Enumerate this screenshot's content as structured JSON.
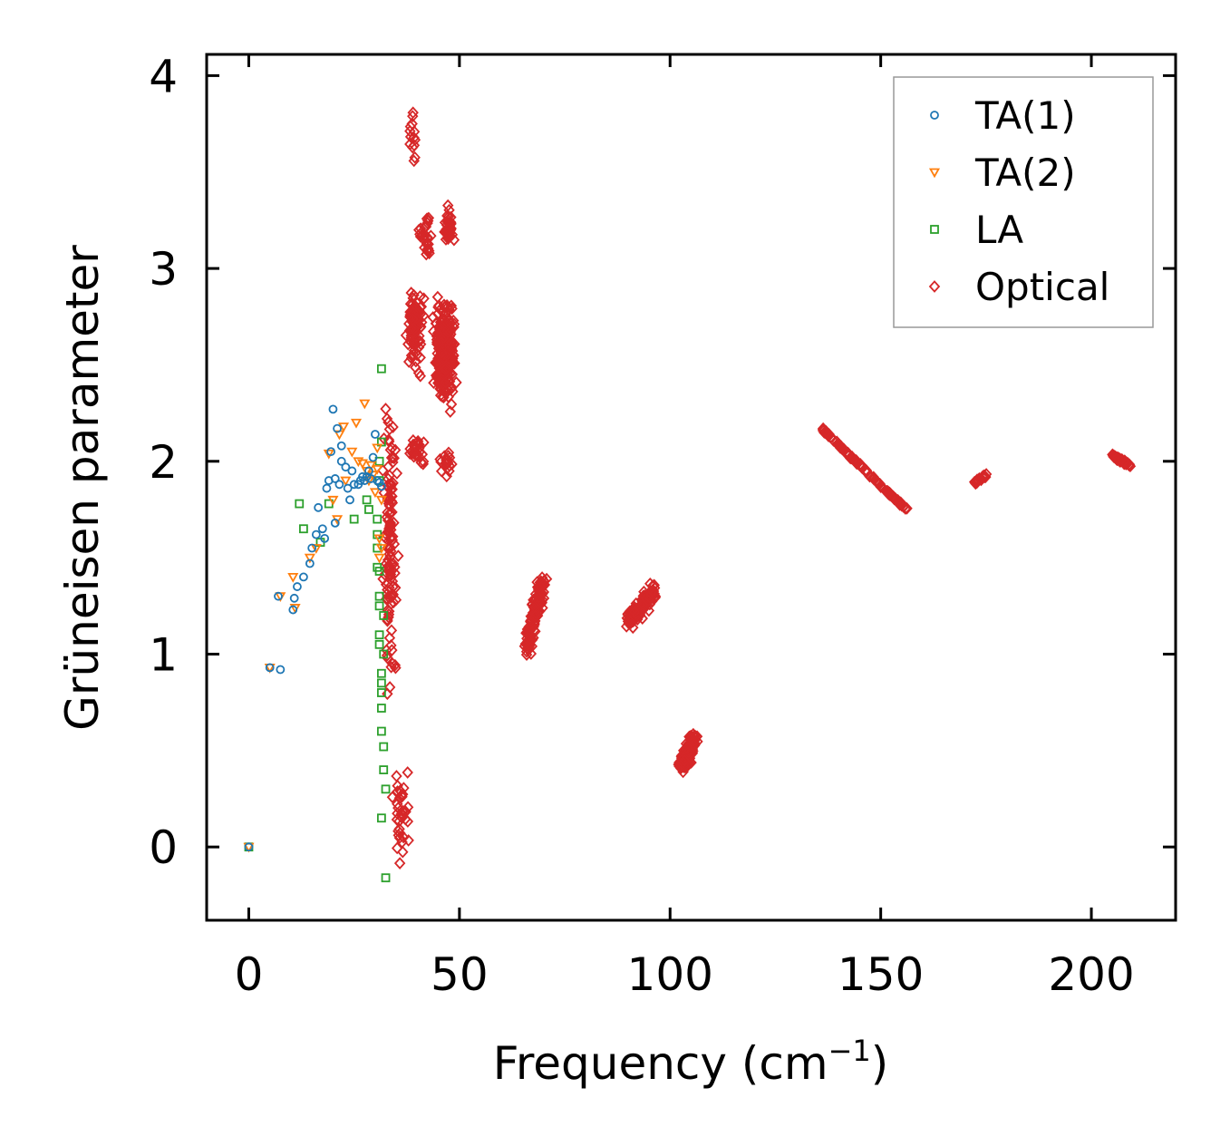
{
  "chart_data": {
    "type": "scatter",
    "title": "",
    "xlabel": "Frequency (cm",
    "xlabel_superscript": "−1",
    "xlabel_suffix": ")",
    "ylabel": "Grüneisen parameter",
    "xlim": [
      -10,
      220
    ],
    "ylim": [
      -0.38,
      4.11
    ],
    "xticks": [
      0,
      50,
      100,
      150,
      200
    ],
    "xtick_labels": [
      "0",
      "50",
      "100",
      "150",
      "200"
    ],
    "yticks": [
      0,
      1,
      2,
      3,
      4
    ],
    "ytick_labels": [
      "0",
      "1",
      "2",
      "3",
      "4"
    ],
    "grid": false,
    "legend_position": "top-right",
    "series": [
      {
        "name": "TA(1)",
        "marker": "circle",
        "color": "#1f77b4",
        "points": [
          [
            0,
            0
          ],
          [
            5,
            0.93
          ],
          [
            7,
            1.3
          ],
          [
            7.5,
            0.92
          ],
          [
            10.5,
            1.23
          ],
          [
            10.8,
            1.29
          ],
          [
            11.5,
            1.35
          ],
          [
            13,
            1.4
          ],
          [
            14.5,
            1.47
          ],
          [
            15,
            1.55
          ],
          [
            16,
            1.62
          ],
          [
            16.5,
            1.76
          ],
          [
            17.5,
            1.65
          ],
          [
            18,
            1.6
          ],
          [
            18.5,
            1.86
          ],
          [
            19,
            1.9
          ],
          [
            19.5,
            2.05
          ],
          [
            20,
            2.27
          ],
          [
            20.5,
            1.91
          ],
          [
            20.5,
            1.68
          ],
          [
            21,
            2.17
          ],
          [
            21.5,
            1.88
          ],
          [
            22,
            2.08
          ],
          [
            22,
            2.0
          ],
          [
            23,
            1.97
          ],
          [
            23.5,
            1.86
          ],
          [
            24,
            1.8
          ],
          [
            24.5,
            1.95
          ],
          [
            25,
            1.88
          ],
          [
            26,
            1.88
          ],
          [
            26.5,
            1.9
          ],
          [
            27,
            1.92
          ],
          [
            27.5,
            1.9
          ],
          [
            28,
            1.92
          ],
          [
            28.5,
            1.95
          ],
          [
            29,
            1.91
          ],
          [
            29.5,
            2.02
          ],
          [
            30,
            2.14
          ],
          [
            30.5,
            1.9
          ],
          [
            31,
            1.89
          ],
          [
            31.5,
            1.87
          ]
        ]
      },
      {
        "name": "TA(2)",
        "marker": "triangle-down",
        "color": "#ff7f0e",
        "points": [
          [
            0,
            0
          ],
          [
            5,
            0.93
          ],
          [
            7.5,
            1.3
          ],
          [
            10.5,
            1.4
          ],
          [
            11,
            1.24
          ],
          [
            14.5,
            1.5
          ],
          [
            16,
            1.55
          ],
          [
            19,
            2.04
          ],
          [
            20,
            1.8
          ],
          [
            21,
            1.7
          ],
          [
            21.5,
            2.14
          ],
          [
            22.5,
            2.18
          ],
          [
            23,
            1.9
          ],
          [
            24.5,
            2.05
          ],
          [
            25.5,
            2.2
          ],
          [
            26,
            2.0
          ],
          [
            27,
            1.99
          ],
          [
            27.5,
            2.3
          ],
          [
            28,
            1.95
          ],
          [
            28.5,
            1.9
          ],
          [
            29,
            1.98
          ],
          [
            29.5,
            1.93
          ],
          [
            30,
            1.84
          ],
          [
            30.5,
            2.07
          ],
          [
            31,
            1.6
          ],
          [
            31,
            1.5
          ],
          [
            31.5,
            1.55
          ],
          [
            31.5,
            1.8
          ],
          [
            30.5,
            1.96
          ]
        ]
      },
      {
        "name": "LA",
        "marker": "square",
        "color": "#2ca02c",
        "points": [
          [
            0,
            0
          ],
          [
            12,
            1.78
          ],
          [
            13,
            1.65
          ],
          [
            17,
            1.58
          ],
          [
            19,
            1.78
          ],
          [
            25,
            1.7
          ],
          [
            28,
            1.8
          ],
          [
            28.5,
            1.75
          ],
          [
            30.5,
            1.7
          ],
          [
            30.5,
            1.55
          ],
          [
            30.5,
            1.45
          ],
          [
            31,
            1.3
          ],
          [
            31,
            1.25
          ],
          [
            31,
            1.1
          ],
          [
            31,
            1.05
          ],
          [
            31.5,
            0.9
          ],
          [
            31.5,
            0.85
          ],
          [
            31.5,
            0.8
          ],
          [
            31.5,
            0.72
          ],
          [
            31.5,
            0.6
          ],
          [
            32,
            0.52
          ],
          [
            32,
            0.4
          ],
          [
            32.5,
            0.3
          ],
          [
            31.5,
            0.15
          ],
          [
            32.5,
            -0.16
          ],
          [
            31.5,
            2.48
          ],
          [
            31.5,
            2.1
          ],
          [
            31,
            2.0
          ],
          [
            31,
            1.9
          ],
          [
            30.5,
            1.62
          ],
          [
            31,
            1.43
          ],
          [
            32,
            1.2
          ],
          [
            32,
            1.0
          ]
        ]
      },
      {
        "name": "Optical",
        "marker": "diamond",
        "color": "#d62728",
        "points": [],
        "clusters": [
          {
            "cx": 33.5,
            "cy": 1.55,
            "sx": 2.2,
            "sy": 0.9,
            "n": 130
          },
          {
            "cx": 36,
            "cy": 0.2,
            "sx": 2.5,
            "sy": 0.3,
            "n": 40
          },
          {
            "cx": 39.5,
            "cy": 2.7,
            "sx": 2.5,
            "sy": 0.3,
            "n": 90
          },
          {
            "cx": 40,
            "cy": 2.05,
            "sx": 2.5,
            "sy": 0.12,
            "n": 25
          },
          {
            "cx": 39,
            "cy": 3.7,
            "sx": 1.2,
            "sy": 0.2,
            "n": 14
          },
          {
            "cx": 42,
            "cy": 3.15,
            "sx": 2.0,
            "sy": 0.15,
            "n": 28
          },
          {
            "cx": 46.5,
            "cy": 2.55,
            "sx": 3.3,
            "sy": 0.35,
            "n": 260
          },
          {
            "cx": 47.5,
            "cy": 3.2,
            "sx": 1.5,
            "sy": 0.15,
            "n": 35
          },
          {
            "cx": 47,
            "cy": 2.0,
            "sx": 2.5,
            "sy": 0.1,
            "n": 20
          }
        ],
        "streaks": [
          {
            "x1": 66,
            "y1": 1.02,
            "x2": 70,
            "y2": 1.4,
            "w": 1.4,
            "wy": 0.06,
            "n": 140
          },
          {
            "x1": 90,
            "y1": 1.17,
            "x2": 96.5,
            "y2": 1.33,
            "w": 1.2,
            "wy": 0.06,
            "n": 130
          },
          {
            "x1": 103,
            "y1": 0.42,
            "x2": 105.5,
            "y2": 0.56,
            "w": 1.6,
            "wy": 0.05,
            "n": 150
          },
          {
            "x1": 136,
            "y1": 2.17,
            "x2": 156,
            "y2": 1.75,
            "w": 0.4,
            "wy": 0.015,
            "n": 120
          },
          {
            "x1": 172,
            "y1": 1.88,
            "x2": 175,
            "y2": 1.93,
            "w": 0.4,
            "wy": 0.015,
            "n": 25
          },
          {
            "x1": 205,
            "y1": 2.03,
            "x2": 209,
            "y2": 1.98,
            "w": 0.5,
            "wy": 0.015,
            "n": 40
          }
        ]
      }
    ]
  }
}
